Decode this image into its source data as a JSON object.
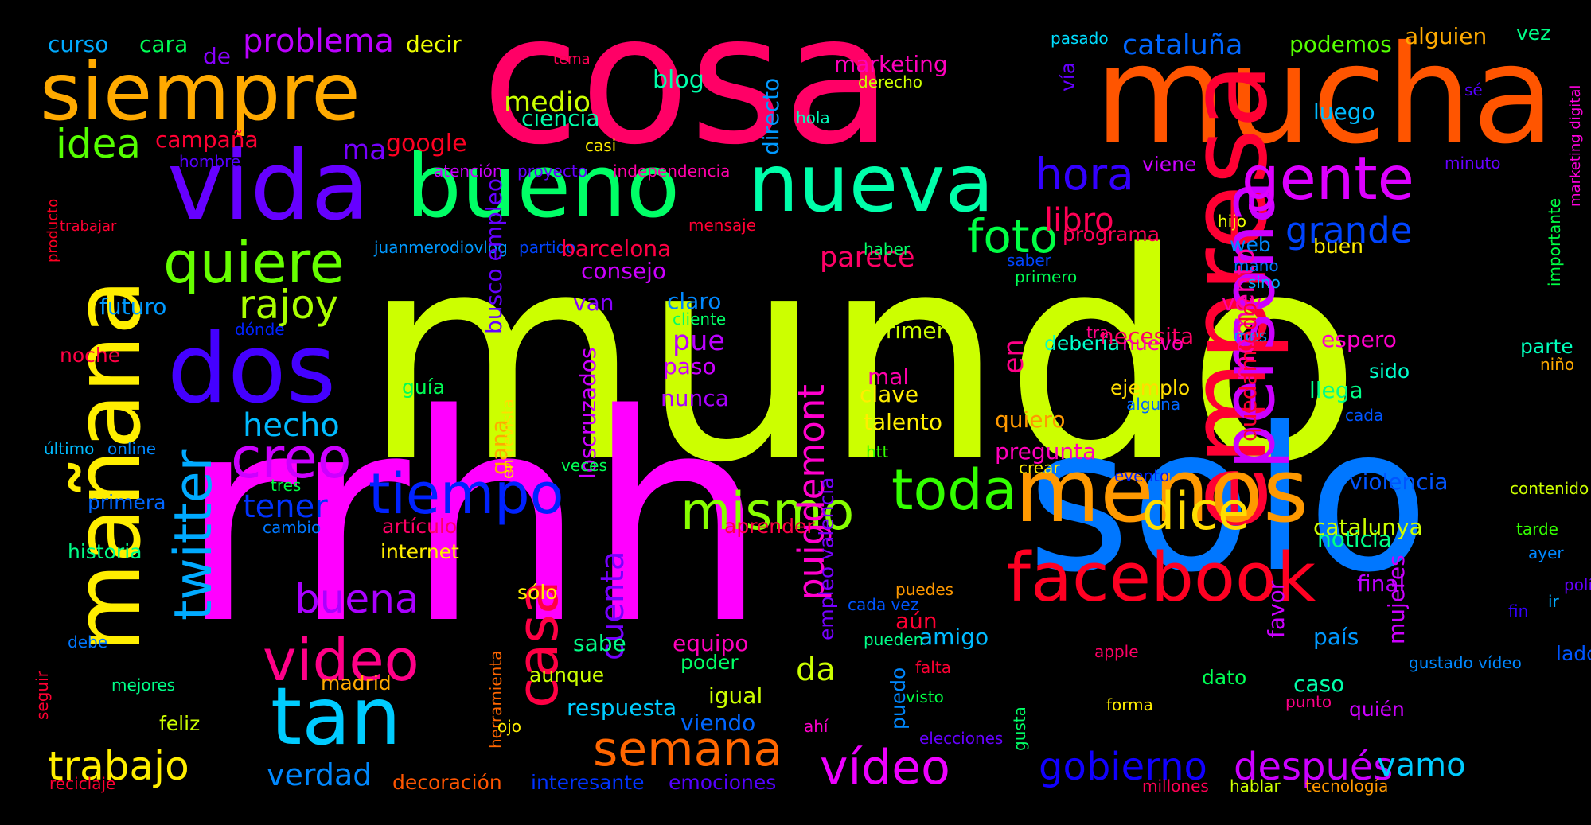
{
  "background": "#000000",
  "words": [
    {
      "text": "mundo",
      "color": "#ccff00"
    },
    {
      "text": "rrhh",
      "color": "#ff00ff"
    },
    {
      "text": "cosa",
      "color": "#ff0066"
    },
    {
      "text": "mucha",
      "color": "#ff5500"
    },
    {
      "text": "solo",
      "color": "#0077ff"
    },
    {
      "text": "empresa",
      "color": "#ff0033"
    },
    {
      "text": "mañana",
      "color": "#ffee00"
    },
    {
      "text": "siempre",
      "color": "#ffaa00"
    },
    {
      "text": "vida",
      "color": "#6600ff"
    },
    {
      "text": "bueno",
      "color": "#00ff66"
    },
    {
      "text": "nueva",
      "color": "#00ffaa"
    },
    {
      "text": "persona",
      "color": "#cc00ff"
    },
    {
      "text": "menos",
      "color": "#ff9900"
    },
    {
      "text": "gente",
      "color": "#dd00ff"
    },
    {
      "text": "dos",
      "color": "#4400ff"
    },
    {
      "text": "tan",
      "color": "#00ccff"
    },
    {
      "text": "facebook",
      "color": "#ff0022"
    },
    {
      "text": "tiempo",
      "color": "#0022ff"
    },
    {
      "text": "twitter",
      "color": "#00aaff"
    },
    {
      "text": "casa",
      "color": "#ff0044"
    },
    {
      "text": "quiere",
      "color": "#66ff00"
    },
    {
      "text": "video",
      "color": "#ff0088"
    },
    {
      "text": "mismo",
      "color": "#88ff00"
    },
    {
      "text": "toda",
      "color": "#33ff00"
    },
    {
      "text": "dice",
      "color": "#ffdd00"
    },
    {
      "text": "semana",
      "color": "#ff6600"
    },
    {
      "text": "vídeo",
      "color": "#ee00ff"
    },
    {
      "text": "creo",
      "color": "#cc00ff"
    },
    {
      "text": "puigdemont",
      "color": "#ff00cc"
    },
    {
      "text": "gobierno",
      "color": "#1100ff"
    },
    {
      "text": "después",
      "color": "#cc00ff"
    },
    {
      "text": "trabajo",
      "color": "#ffee00"
    },
    {
      "text": "hora",
      "color": "#3300ff"
    },
    {
      "text": "foto",
      "color": "#00ff44"
    },
    {
      "text": "grande",
      "color": "#0044ff"
    },
    {
      "text": "rajoy",
      "color": "#aaff00"
    },
    {
      "text": "buena",
      "color": "#aa00ff"
    },
    {
      "text": "idea",
      "color": "#55ff00"
    },
    {
      "text": "hecho",
      "color": "#00bbff"
    },
    {
      "text": "tener",
      "color": "#0033ff"
    },
    {
      "text": "problema",
      "color": "#bb00ff"
    },
    {
      "text": "medio",
      "color": "#ccff00"
    },
    {
      "text": "cataluña",
      "color": "#0066ff"
    },
    {
      "text": "libro",
      "color": "#ff0055"
    },
    {
      "text": "vamo",
      "color": "#00ccff"
    },
    {
      "text": "verdad",
      "color": "#0088ff"
    },
    {
      "text": "parece",
      "color": "#ff0066"
    },
    {
      "text": "cuenta",
      "color": "#7700ff"
    },
    {
      "text": "momento",
      "color": "#ff00aa"
    },
    {
      "text": "da",
      "color": "#ccff00"
    },
    {
      "text": "pue",
      "color": "#bb00ff"
    },
    {
      "text": "curso",
      "color": "#00aaff"
    },
    {
      "text": "cara",
      "color": "#00ff55"
    },
    {
      "text": "de",
      "color": "#8800ff"
    },
    {
      "text": "decir",
      "color": "#eeff00"
    },
    {
      "text": "tema",
      "color": "#ff0055"
    },
    {
      "text": "blog",
      "color": "#00ffaa"
    },
    {
      "text": "directo",
      "color": "#0099ff"
    },
    {
      "text": "marketing",
      "color": "#ff00bb"
    },
    {
      "text": "derecho",
      "color": "#ccff00"
    },
    {
      "text": "pasado",
      "color": "#00ddff"
    },
    {
      "text": "podemos",
      "color": "#55ff00"
    },
    {
      "text": "alguien",
      "color": "#ffaa00"
    },
    {
      "text": "vez",
      "color": "#00ff88"
    },
    {
      "text": "vía",
      "color": "#6600ff"
    },
    {
      "text": "sé",
      "color": "#5500ff"
    },
    {
      "text": "marketing digital",
      "color": "#ff00dd"
    },
    {
      "text": "campaña",
      "color": "#ff0033"
    },
    {
      "text": "ma",
      "color": "#7700ff"
    },
    {
      "text": "google",
      "color": "#ff0022"
    },
    {
      "text": "ciencia",
      "color": "#00ffaa"
    },
    {
      "text": "hola",
      "color": "#00ffbb"
    },
    {
      "text": "luego",
      "color": "#00bbff"
    },
    {
      "text": "casi",
      "color": "#ffee00"
    },
    {
      "text": "hombre",
      "color": "#5500ff"
    },
    {
      "text": "atención",
      "color": "#cc00ff"
    },
    {
      "text": "proyecto",
      "color": "#6600ff"
    },
    {
      "text": "independencia",
      "color": "#ff00aa"
    },
    {
      "text": "viene",
      "color": "#cc00ff"
    },
    {
      "text": "minuto",
      "color": "#6600ff"
    },
    {
      "text": "importante",
      "color": "#00ff44"
    },
    {
      "text": "producto",
      "color": "#ff0022"
    },
    {
      "text": "trabajar",
      "color": "#ff0033"
    },
    {
      "text": "mensaje",
      "color": "#ff0033"
    },
    {
      "text": "hijo",
      "color": "#eeff00"
    },
    {
      "text": "juanmerodiovlog",
      "color": "#0099ff"
    },
    {
      "text": "partido",
      "color": "#0044ff"
    },
    {
      "text": "barcelona",
      "color": "#ff0044"
    },
    {
      "text": "haber",
      "color": "#00ff66"
    },
    {
      "text": "programa",
      "color": "#ff0055"
    },
    {
      "text": "web",
      "color": "#0088ff"
    },
    {
      "text": "buen",
      "color": "#ffee00"
    },
    {
      "text": "futuro",
      "color": "#0099ff"
    },
    {
      "text": "consejo",
      "color": "#cc00ff"
    },
    {
      "text": "saber",
      "color": "#0044ff"
    },
    {
      "text": "primero",
      "color": "#00ff55"
    },
    {
      "text": "mano",
      "color": "#0077ff"
    },
    {
      "text": "sino",
      "color": "#00aaff"
    },
    {
      "text": "van",
      "color": "#8800ff"
    },
    {
      "text": "claro",
      "color": "#0088ff"
    },
    {
      "text": "cliente",
      "color": "#00ff66"
    },
    {
      "text": "mes",
      "color": "#0099ff"
    },
    {
      "text": "voy",
      "color": "#ff00aa"
    },
    {
      "text": "dónde",
      "color": "#0022ff"
    },
    {
      "text": "noche",
      "color": "#ff0044"
    },
    {
      "text": "paso",
      "color": "#cc00ff"
    },
    {
      "text": "primer",
      "color": "#ccff00"
    },
    {
      "text": "debería",
      "color": "#00ffcc"
    },
    {
      "text": "tra",
      "color": "#ff0088"
    },
    {
      "text": "necesita",
      "color": "#ff0066"
    },
    {
      "text": "nuevo",
      "color": "#ff00bb"
    },
    {
      "text": "espero",
      "color": "#ff00cc"
    },
    {
      "text": "parte",
      "color": "#00ffbb"
    },
    {
      "text": "niño",
      "color": "#ffaa00"
    },
    {
      "text": "guía",
      "color": "#00ff55"
    },
    {
      "text": "mal",
      "color": "#ff00aa"
    },
    {
      "text": "clave",
      "color": "#ffee00"
    },
    {
      "text": "ejemplo",
      "color": "#ffdd00"
    },
    {
      "text": "sido",
      "color": "#00ffcc"
    },
    {
      "text": "nunca",
      "color": "#aa00ff"
    },
    {
      "text": "alguna",
      "color": "#0066ff"
    },
    {
      "text": "llega",
      "color": "#00ff88"
    },
    {
      "text": "talento",
      "color": "#ffee00"
    },
    {
      "text": "quiero",
      "color": "#ff9900"
    },
    {
      "text": "cada",
      "color": "#0055ff"
    },
    {
      "text": "gana",
      "color": "#ffaa00"
    },
    {
      "text": "entrevista",
      "color": "#ffdd00"
    },
    {
      "text": "loscruzados",
      "color": "#cc00ff"
    },
    {
      "text": "busco empleo",
      "color": "#6600ff"
    },
    {
      "text": "en",
      "color": "#ff0088"
    },
    {
      "text": "quedamiedo",
      "color": "#ff0033"
    },
    {
      "text": "htt",
      "color": "#33ff00"
    },
    {
      "text": "pregunta",
      "color": "#ff00bb"
    },
    {
      "text": "crear",
      "color": "#ffee00"
    },
    {
      "text": "evento",
      "color": "#0022ff"
    },
    {
      "text": "violencia",
      "color": "#0055ff"
    },
    {
      "text": "último",
      "color": "#00bbff"
    },
    {
      "text": "online",
      "color": "#0088ff"
    },
    {
      "text": "veces",
      "color": "#00ff55"
    },
    {
      "text": "tres",
      "color": "#00ff44"
    },
    {
      "text": "contenido",
      "color": "#ccff00"
    },
    {
      "text": "primera",
      "color": "#0066ff"
    },
    {
      "text": "cambio",
      "color": "#0077ff"
    },
    {
      "text": "aprender",
      "color": "#ff0044"
    },
    {
      "text": "artículo",
      "color": "#ff0066"
    },
    {
      "text": "catalunya",
      "color": "#ccff00"
    },
    {
      "text": "tarde",
      "color": "#33ff00"
    },
    {
      "text": "noticia",
      "color": "#00ff88"
    },
    {
      "text": "historia",
      "color": "#00ff88"
    },
    {
      "text": "internet",
      "color": "#ffee00"
    },
    {
      "text": "ayer",
      "color": "#0088ff"
    },
    {
      "text": "seguir",
      "color": "#ff0033"
    },
    {
      "text": "empleo valencia",
      "color": "#7700ff"
    },
    {
      "text": "política",
      "color": "#6600ff"
    },
    {
      "text": "sólo",
      "color": "#ffee00"
    },
    {
      "text": "final",
      "color": "#bb00ff"
    },
    {
      "text": "puedes",
      "color": "#ff9900"
    },
    {
      "text": "aún",
      "color": "#ff0033"
    },
    {
      "text": "favor",
      "color": "#cc00ff"
    },
    {
      "text": "cada vez",
      "color": "#0055ff"
    },
    {
      "text": "fin",
      "color": "#3300ff"
    },
    {
      "text": "amigo",
      "color": "#00bbff"
    },
    {
      "text": "país",
      "color": "#0099ff"
    },
    {
      "text": "pueden",
      "color": "#00ff88"
    },
    {
      "text": "mujeres",
      "color": "#cc00ff"
    },
    {
      "text": "sabe",
      "color": "#00ff88"
    },
    {
      "text": "equipo",
      "color": "#ff00bb"
    },
    {
      "text": "ir",
      "color": "#00aaff"
    },
    {
      "text": "lado",
      "color": "#0055ff"
    },
    {
      "text": "debe",
      "color": "#0077ff"
    },
    {
      "text": "apple",
      "color": "#ff0066"
    },
    {
      "text": "aunque",
      "color": "#ccff00"
    },
    {
      "text": "poder",
      "color": "#00ff66"
    },
    {
      "text": "falta",
      "color": "#ff0033"
    },
    {
      "text": "gustado vídeo",
      "color": "#0088ff"
    },
    {
      "text": "herramienta",
      "color": "#ff6600"
    },
    {
      "text": "mejores",
      "color": "#00ff88"
    },
    {
      "text": "madrid",
      "color": "#ffaa00"
    },
    {
      "text": "puedo",
      "color": "#0088ff"
    },
    {
      "text": "dato",
      "color": "#00ff55"
    },
    {
      "text": "caso",
      "color": "#00ffaa"
    },
    {
      "text": "igual",
      "color": "#ccff00"
    },
    {
      "text": "visto",
      "color": "#00ff44"
    },
    {
      "text": "respuesta",
      "color": "#00ccff"
    },
    {
      "text": "gusta",
      "color": "#00ff66"
    },
    {
      "text": "punto",
      "color": "#ff0088"
    },
    {
      "text": "forma",
      "color": "#ffee00"
    },
    {
      "text": "quién",
      "color": "#cc00ff"
    },
    {
      "text": "feliz",
      "color": "#ccff00"
    },
    {
      "text": "viendo",
      "color": "#0066ff"
    },
    {
      "text": "ojo",
      "color": "#ffee00"
    },
    {
      "text": "ahí",
      "color": "#ff00cc"
    },
    {
      "text": "elecciones",
      "color": "#6600ff"
    },
    {
      "text": "reciclaje",
      "color": "#ff0033"
    },
    {
      "text": "decoración",
      "color": "#ff5500"
    },
    {
      "text": "interesante",
      "color": "#0033ff"
    },
    {
      "text": "emociones",
      "color": "#5500ff"
    },
    {
      "text": "millones",
      "color": "#ff0055"
    },
    {
      "text": "hablar",
      "color": "#ccff00"
    },
    {
      "text": "tecnología",
      "color": "#ff9900"
    }
  ]
}
